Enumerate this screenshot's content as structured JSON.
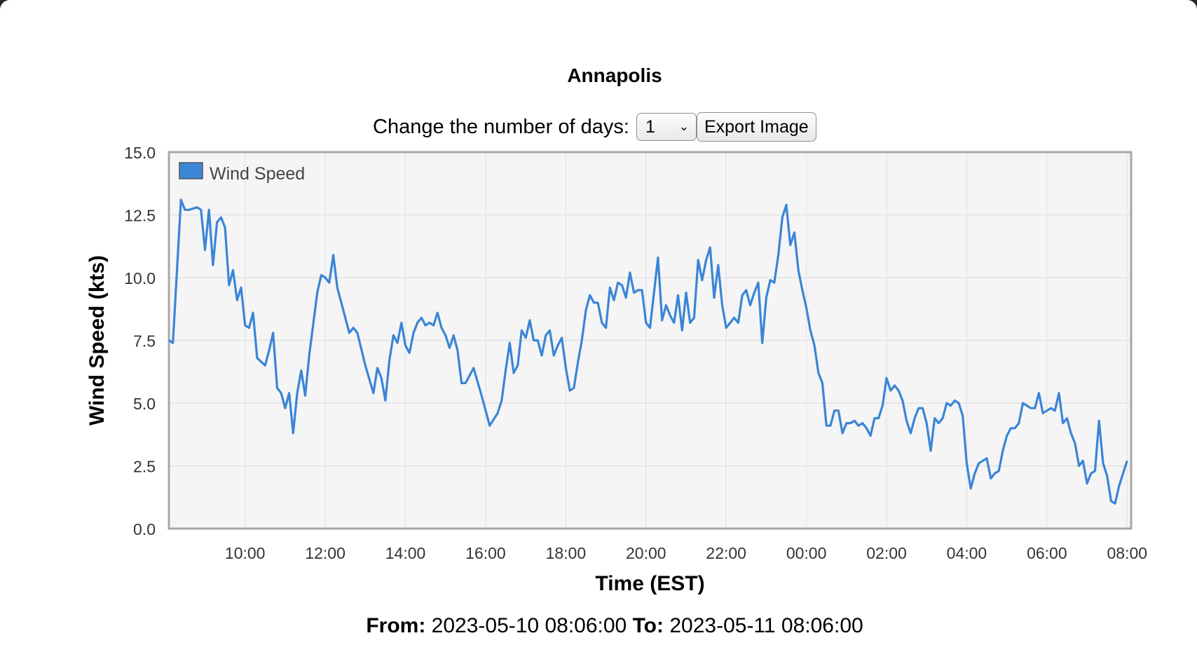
{
  "title": "Annapolis",
  "controls": {
    "days_label": "Change the number of days:",
    "days_value": "1",
    "export_label": "Export Image"
  },
  "footer": {
    "from_label": "From:",
    "from_value": "2023-05-10 08:06:00",
    "to_label": "To:",
    "to_value": "2023-05-11 08:06:00"
  },
  "colors": {
    "series": "#3a85d6",
    "plot_bg": "#f5f5f5",
    "frame": "#a8a8a8"
  },
  "chart_data": {
    "type": "line",
    "xlabel": "Time (EST)",
    "ylabel": "Wind Speed (kts)",
    "ylim": [
      0,
      15
    ],
    "xlim": [
      "2023-05-10 08:06",
      "2023-05-11 08:06"
    ],
    "yticks": [
      "0.0",
      "2.5",
      "5.0",
      "7.5",
      "10.0",
      "12.5",
      "15.0"
    ],
    "xticks": [
      "10:00",
      "12:00",
      "14:00",
      "16:00",
      "18:00",
      "20:00",
      "22:00",
      "00:00",
      "02:00",
      "04:00",
      "06:00",
      "08:00"
    ],
    "grid": true,
    "legend_position": "top-left",
    "series": [
      {
        "name": "Wind Speed",
        "x": [
          "2023-05-10 08:06",
          "2023-05-10 08:12",
          "2023-05-10 08:24",
          "2023-05-10 08:30",
          "2023-05-10 08:36",
          "2023-05-10 08:48",
          "2023-05-10 08:54",
          "2023-05-10 09:00",
          "2023-05-10 09:06",
          "2023-05-10 09:12",
          "2023-05-10 09:18",
          "2023-05-10 09:24",
          "2023-05-10 09:30",
          "2023-05-10 09:36",
          "2023-05-10 09:42",
          "2023-05-10 09:48",
          "2023-05-10 09:54",
          "2023-05-10 10:00",
          "2023-05-10 10:06",
          "2023-05-10 10:12",
          "2023-05-10 10:18",
          "2023-05-10 10:30",
          "2023-05-10 10:36",
          "2023-05-10 10:42",
          "2023-05-10 10:48",
          "2023-05-10 10:54",
          "2023-05-10 11:00",
          "2023-05-10 11:06",
          "2023-05-10 11:12",
          "2023-05-10 11:18",
          "2023-05-10 11:24",
          "2023-05-10 11:30",
          "2023-05-10 11:36",
          "2023-05-10 11:48",
          "2023-05-10 11:54",
          "2023-05-10 12:00",
          "2023-05-10 12:06",
          "2023-05-10 12:12",
          "2023-05-10 12:18",
          "2023-05-10 12:30",
          "2023-05-10 12:36",
          "2023-05-10 12:42",
          "2023-05-10 12:48",
          "2023-05-10 13:00",
          "2023-05-10 13:12",
          "2023-05-10 13:18",
          "2023-05-10 13:24",
          "2023-05-10 13:30",
          "2023-05-10 13:36",
          "2023-05-10 13:42",
          "2023-05-10 13:48",
          "2023-05-10 13:54",
          "2023-05-10 14:00",
          "2023-05-10 14:06",
          "2023-05-10 14:12",
          "2023-05-10 14:18",
          "2023-05-10 14:24",
          "2023-05-10 14:30",
          "2023-05-10 14:36",
          "2023-05-10 14:42",
          "2023-05-10 14:48",
          "2023-05-10 14:54",
          "2023-05-10 15:00",
          "2023-05-10 15:06",
          "2023-05-10 15:12",
          "2023-05-10 15:18",
          "2023-05-10 15:24",
          "2023-05-10 15:30",
          "2023-05-10 15:42",
          "2023-05-10 15:54",
          "2023-05-10 16:06",
          "2023-05-10 16:18",
          "2023-05-10 16:24",
          "2023-05-10 16:30",
          "2023-05-10 16:36",
          "2023-05-10 16:42",
          "2023-05-10 16:48",
          "2023-05-10 16:54",
          "2023-05-10 17:00",
          "2023-05-10 17:06",
          "2023-05-10 17:12",
          "2023-05-10 17:18",
          "2023-05-10 17:24",
          "2023-05-10 17:30",
          "2023-05-10 17:36",
          "2023-05-10 17:42",
          "2023-05-10 17:48",
          "2023-05-10 17:54",
          "2023-05-10 18:00",
          "2023-05-10 18:06",
          "2023-05-10 18:12",
          "2023-05-10 18:18",
          "2023-05-10 18:24",
          "2023-05-10 18:30",
          "2023-05-10 18:36",
          "2023-05-10 18:42",
          "2023-05-10 18:48",
          "2023-05-10 18:54",
          "2023-05-10 19:00",
          "2023-05-10 19:06",
          "2023-05-10 19:12",
          "2023-05-10 19:18",
          "2023-05-10 19:24",
          "2023-05-10 19:30",
          "2023-05-10 19:36",
          "2023-05-10 19:42",
          "2023-05-10 19:48",
          "2023-05-10 19:54",
          "2023-05-10 20:00",
          "2023-05-10 20:06",
          "2023-05-10 20:12",
          "2023-05-10 20:18",
          "2023-05-10 20:24",
          "2023-05-10 20:30",
          "2023-05-10 20:36",
          "2023-05-10 20:42",
          "2023-05-10 20:48",
          "2023-05-10 20:54",
          "2023-05-10 21:00",
          "2023-05-10 21:06",
          "2023-05-10 21:12",
          "2023-05-10 21:18",
          "2023-05-10 21:24",
          "2023-05-10 21:30",
          "2023-05-10 21:36",
          "2023-05-10 21:42",
          "2023-05-10 21:48",
          "2023-05-10 21:54",
          "2023-05-10 22:00",
          "2023-05-10 22:12",
          "2023-05-10 22:18",
          "2023-05-10 22:24",
          "2023-05-10 22:30",
          "2023-05-10 22:36",
          "2023-05-10 22:42",
          "2023-05-10 22:48",
          "2023-05-10 22:54",
          "2023-05-10 23:00",
          "2023-05-10 23:06",
          "2023-05-10 23:12",
          "2023-05-10 23:18",
          "2023-05-10 23:24",
          "2023-05-10 23:30",
          "2023-05-10 23:36",
          "2023-05-10 23:42",
          "2023-05-10 23:48",
          "2023-05-10 23:54",
          "2023-05-11 00:00",
          "2023-05-11 00:06",
          "2023-05-11 00:12",
          "2023-05-11 00:18",
          "2023-05-11 00:24",
          "2023-05-11 00:30",
          "2023-05-11 00:36",
          "2023-05-11 00:42",
          "2023-05-11 00:48",
          "2023-05-11 00:54",
          "2023-05-11 01:00",
          "2023-05-11 01:06",
          "2023-05-11 01:12",
          "2023-05-11 01:18",
          "2023-05-11 01:24",
          "2023-05-11 01:30",
          "2023-05-11 01:36",
          "2023-05-11 01:42",
          "2023-05-11 01:48",
          "2023-05-11 01:54",
          "2023-05-11 02:00",
          "2023-05-11 02:06",
          "2023-05-11 02:12",
          "2023-05-11 02:18",
          "2023-05-11 02:24",
          "2023-05-11 02:30",
          "2023-05-11 02:36",
          "2023-05-11 02:42",
          "2023-05-11 02:48",
          "2023-05-11 02:54",
          "2023-05-11 03:00",
          "2023-05-11 03:06",
          "2023-05-11 03:12",
          "2023-05-11 03:18",
          "2023-05-11 03:24",
          "2023-05-11 03:30",
          "2023-05-11 03:36",
          "2023-05-11 03:42",
          "2023-05-11 03:48",
          "2023-05-11 03:54",
          "2023-05-11 04:00",
          "2023-05-11 04:06",
          "2023-05-11 04:12",
          "2023-05-11 04:18",
          "2023-05-11 04:24",
          "2023-05-11 04:30",
          "2023-05-11 04:36",
          "2023-05-11 04:42",
          "2023-05-11 04:48",
          "2023-05-11 04:54",
          "2023-05-11 05:00",
          "2023-05-11 05:06",
          "2023-05-11 05:12",
          "2023-05-11 05:18",
          "2023-05-11 05:24",
          "2023-05-11 05:30",
          "2023-05-11 05:36",
          "2023-05-11 05:42",
          "2023-05-11 05:48",
          "2023-05-11 05:54",
          "2023-05-11 06:00",
          "2023-05-11 06:06",
          "2023-05-11 06:12",
          "2023-05-11 06:18",
          "2023-05-11 06:24",
          "2023-05-11 06:30",
          "2023-05-11 06:36",
          "2023-05-11 06:42",
          "2023-05-11 06:48",
          "2023-05-11 06:54",
          "2023-05-11 07:00",
          "2023-05-11 07:06",
          "2023-05-11 07:12",
          "2023-05-11 07:18",
          "2023-05-11 07:24",
          "2023-05-11 07:30",
          "2023-05-11 07:36",
          "2023-05-11 07:42",
          "2023-05-11 07:48",
          "2023-05-11 08:00"
        ],
        "y": [
          7.5,
          7.4,
          13.1,
          12.7,
          12.7,
          12.8,
          12.7,
          11.1,
          12.7,
          10.5,
          12.2,
          12.4,
          12.0,
          9.7,
          10.3,
          9.1,
          9.6,
          8.1,
          8.0,
          8.6,
          6.8,
          6.5,
          7.1,
          7.8,
          5.6,
          5.4,
          4.8,
          5.4,
          3.8,
          5.4,
          6.3,
          5.3,
          6.9,
          9.4,
          10.1,
          10.0,
          9.8,
          10.9,
          9.6,
          8.4,
          7.8,
          8.0,
          7.8,
          6.5,
          5.4,
          6.4,
          6.0,
          5.1,
          6.7,
          7.7,
          7.4,
          8.2,
          7.3,
          7.0,
          7.8,
          8.2,
          8.4,
          8.1,
          8.2,
          8.1,
          8.6,
          8.0,
          7.7,
          7.2,
          7.7,
          7.1,
          5.8,
          5.8,
          6.4,
          5.3,
          4.1,
          4.6,
          5.1,
          6.3,
          7.4,
          6.2,
          6.5,
          7.9,
          7.6,
          8.3,
          7.5,
          7.5,
          6.9,
          7.7,
          7.9,
          6.9,
          7.3,
          7.6,
          6.4,
          5.5,
          5.6,
          6.6,
          7.5,
          8.7,
          9.3,
          9.0,
          9.0,
          8.2,
          8.0,
          9.6,
          9.1,
          9.8,
          9.7,
          9.2,
          10.2,
          9.4,
          9.5,
          9.5,
          8.2,
          8.0,
          9.4,
          10.8,
          8.3,
          8.9,
          8.5,
          8.2,
          9.3,
          7.9,
          9.4,
          8.2,
          8.4,
          10.7,
          9.9,
          10.7,
          11.2,
          9.2,
          10.5,
          8.9,
          8.0,
          8.4,
          8.2,
          9.3,
          9.5,
          8.9,
          9.4,
          9.8,
          7.4,
          9.2,
          9.9,
          9.8,
          10.9,
          12.4,
          12.9,
          11.3,
          11.8,
          10.3,
          9.5,
          8.8,
          7.9,
          7.3,
          6.2,
          5.8,
          4.1,
          4.1,
          4.7,
          4.7,
          3.8,
          4.2,
          4.2,
          4.3,
          4.1,
          4.2,
          4.0,
          3.7,
          4.4,
          4.4,
          4.9,
          6.0,
          5.5,
          5.7,
          5.5,
          5.1,
          4.3,
          3.8,
          4.4,
          4.8,
          4.8,
          4.2,
          3.1,
          4.4,
          4.2,
          4.4,
          5.0,
          4.9,
          5.1,
          5.0,
          4.5,
          2.6,
          1.6,
          2.2,
          2.6,
          2.7,
          2.8,
          2.0,
          2.2,
          2.3,
          3.1,
          3.7,
          4.0,
          4.0,
          4.2,
          5.0,
          4.9,
          4.8,
          4.8,
          5.4,
          4.6,
          4.7,
          4.8,
          4.7,
          5.4,
          4.2,
          4.4,
          3.8,
          3.4,
          2.5,
          2.7,
          1.8,
          2.2,
          2.3,
          4.3,
          2.6,
          2.1,
          1.1,
          1.0,
          1.7,
          2.7
        ]
      }
    ]
  }
}
